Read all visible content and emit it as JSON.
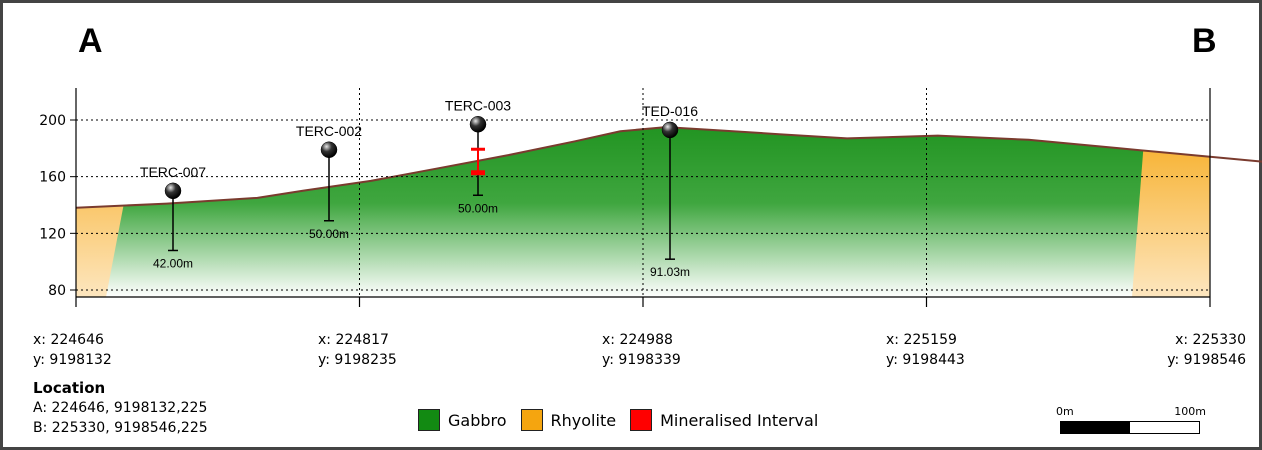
{
  "section": {
    "start_label": "A",
    "end_label": "B"
  },
  "chart_data": {
    "type": "cross-section",
    "y_ticks": [
      "200",
      "160",
      "120",
      "80"
    ],
    "ylim": [
      80,
      220
    ],
    "distance_range_m": [
      0,
      500
    ],
    "terrain_profile": [
      [
        0,
        138
      ],
      [
        40,
        141
      ],
      [
        80,
        145
      ],
      [
        100,
        150
      ],
      [
        130,
        157
      ],
      [
        160,
        166
      ],
      [
        190,
        175
      ],
      [
        220,
        185
      ],
      [
        240,
        192
      ],
      [
        260,
        195
      ],
      [
        280,
        193
      ],
      [
        310,
        190
      ],
      [
        340,
        187
      ],
      [
        380,
        189
      ],
      [
        420,
        186
      ],
      [
        460,
        180
      ],
      [
        500,
        174
      ],
      [
        540,
        168
      ],
      [
        580,
        163
      ],
      [
        620,
        160
      ],
      [
        660,
        154
      ],
      [
        700,
        148
      ],
      [
        720,
        143
      ],
      [
        750,
        138
      ]
    ],
    "drillholes": [
      {
        "name": "TERC-007",
        "collar_elev": 150,
        "depth_label": "42.00m",
        "mineralised": false
      },
      {
        "name": "TERC-002",
        "collar_elev": 179,
        "depth_label": "50.00m",
        "mineralised": false
      },
      {
        "name": "TERC-003",
        "collar_elev": 197,
        "depth_label": "50.00m",
        "mineralised": true
      },
      {
        "name": "TED-016",
        "collar_elev": 193,
        "depth_label": "91.03m",
        "mineralised": false
      }
    ],
    "x_coords": [
      {
        "x": "x: 224646",
        "y": "y: 9198132"
      },
      {
        "x": "x: 224817",
        "y": "y: 9198235"
      },
      {
        "x": "x: 224988",
        "y": "y: 9198339"
      },
      {
        "x": "x: 225159",
        "y": "y: 9198443"
      },
      {
        "x": "x: 225330",
        "y": "y: 9198546"
      }
    ],
    "legend": [
      {
        "label": "Gabbro",
        "color": "#128a12"
      },
      {
        "label": "Rhyolite",
        "color": "#f5a50f"
      },
      {
        "label": "Mineralised Interval",
        "color": "#ff0000"
      }
    ]
  },
  "location": {
    "title": "Location",
    "a": "A: 224646, 9198132,225",
    "b": "B: 225330, 9198546,225"
  },
  "scale": {
    "start": "0m",
    "end": "100m"
  }
}
